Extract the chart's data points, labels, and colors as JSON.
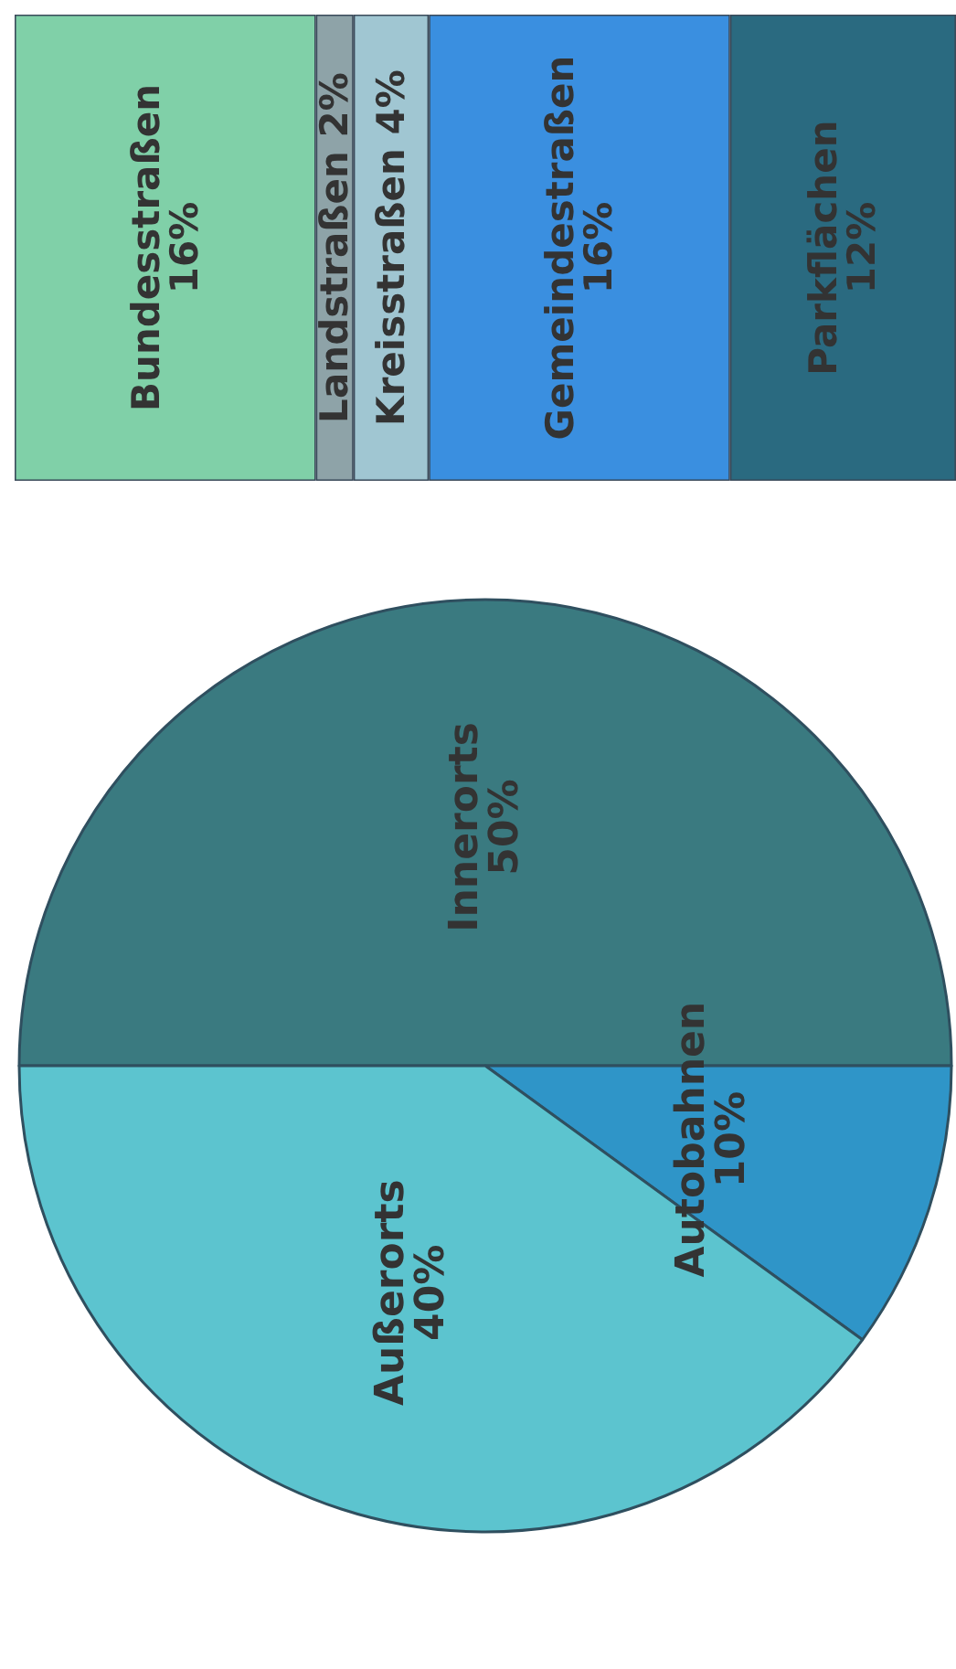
{
  "chart_data": [
    {
      "type": "bar",
      "orientation": "horizontal",
      "stacked": true,
      "xlim": [
        0,
        50
      ],
      "categories": [
        null
      ],
      "tick_labels": false,
      "legend": false,
      "series": [
        {
          "name": "Bundesstraßen",
          "color": "#80d0a8",
          "values": [
            16
          ],
          "value_labels": [
            "16%"
          ]
        },
        {
          "name": "Landstraßen",
          "color": "#8ea3a8",
          "values": [
            2
          ],
          "value_labels": [
            "2%"
          ]
        },
        {
          "name": "Kreisstraßen",
          "color": "#a0c6d2",
          "values": [
            4
          ],
          "value_labels": [
            "4%"
          ]
        },
        {
          "name": "Gemeindestraßen",
          "color": "#3a8fe0",
          "values": [
            16
          ],
          "value_labels": [
            "16%"
          ]
        },
        {
          "name": "Parkflächen",
          "color": "#2a6a80",
          "values": [
            12
          ],
          "value_labels": [
            "12%"
          ]
        }
      ]
    },
    {
      "type": "pie",
      "categories": [
        "Innerorts",
        "Autobahnen",
        "Außerorts"
      ],
      "values": [
        50,
        10,
        40
      ],
      "colors": [
        "#3a7a80",
        "#2f95c8",
        "#5cc4cf"
      ],
      "value_labels": [
        "50%",
        "10%",
        "40%"
      ],
      "legend": false
    }
  ]
}
